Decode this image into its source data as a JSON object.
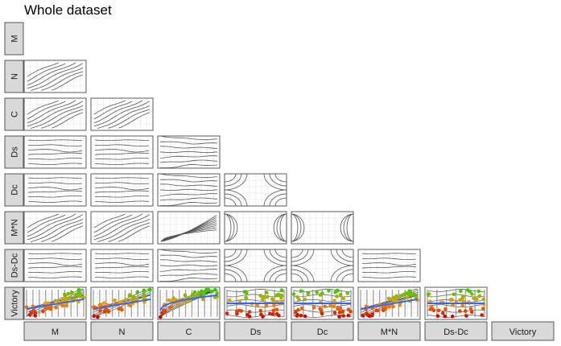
{
  "title": "Whole dataset",
  "colors": {
    "strip_fill": "#d9d9d9",
    "strip_border": "#333333",
    "panel_border": "#333333",
    "grid": "#ebebeb",
    "contour": "#555555",
    "smooth_line": "#3366ff",
    "point_low": "#cc0000",
    "point_mid": "#ff9900",
    "point_high": "#33cc00"
  },
  "chart_data": {
    "type": "scatter",
    "plot_kind": "pairs-matrix",
    "layout": "lower-triangle",
    "variables": [
      "M",
      "N",
      "C",
      "Ds",
      "Dc",
      "M*N",
      "Ds-Dc",
      "Victory"
    ],
    "row_labels": [
      "M",
      "N",
      "C",
      "Ds",
      "Dc",
      "M*N",
      "Ds-Dc",
      "Victory"
    ],
    "column_labels": [
      "M",
      "N",
      "C",
      "Ds",
      "Dc",
      "M*N",
      "Ds-Dc",
      "Victory"
    ],
    "panels": [
      {
        "row": "N",
        "col": "M",
        "kind": "contour",
        "pattern": "diagonal-bands"
      },
      {
        "row": "C",
        "col": "M",
        "kind": "contour",
        "pattern": "diagonal-bands"
      },
      {
        "row": "C",
        "col": "N",
        "kind": "contour",
        "pattern": "diagonal-bands"
      },
      {
        "row": "Ds",
        "col": "M",
        "kind": "contour",
        "pattern": "horizontal-bands"
      },
      {
        "row": "Ds",
        "col": "N",
        "kind": "contour",
        "pattern": "horizontal-bands"
      },
      {
        "row": "Ds",
        "col": "C",
        "kind": "contour",
        "pattern": "left-dense-bands"
      },
      {
        "row": "Dc",
        "col": "M",
        "kind": "contour",
        "pattern": "horizontal-bands"
      },
      {
        "row": "Dc",
        "col": "N",
        "kind": "contour",
        "pattern": "horizontal-bands"
      },
      {
        "row": "Dc",
        "col": "C",
        "kind": "contour",
        "pattern": "left-dense-bands"
      },
      {
        "row": "Dc",
        "col": "Ds",
        "kind": "contour",
        "pattern": "corner-arcs"
      },
      {
        "row": "M*N",
        "col": "M",
        "kind": "contour",
        "pattern": "diagonal-bands"
      },
      {
        "row": "M*N",
        "col": "N",
        "kind": "contour",
        "pattern": "diagonal-bands"
      },
      {
        "row": "M*N",
        "col": "C",
        "kind": "contour",
        "pattern": "curved-fan"
      },
      {
        "row": "M*N",
        "col": "Ds",
        "kind": "contour",
        "pattern": "side-brackets"
      },
      {
        "row": "M*N",
        "col": "Dc",
        "kind": "contour",
        "pattern": "side-brackets"
      },
      {
        "row": "Ds-Dc",
        "col": "M",
        "kind": "contour",
        "pattern": "horizontal-bands"
      },
      {
        "row": "Ds-Dc",
        "col": "N",
        "kind": "contour",
        "pattern": "horizontal-bands"
      },
      {
        "row": "Ds-Dc",
        "col": "C",
        "kind": "contour",
        "pattern": "left-dense-bands"
      },
      {
        "row": "Ds-Dc",
        "col": "Ds",
        "kind": "contour",
        "pattern": "corner-arcs"
      },
      {
        "row": "Ds-Dc",
        "col": "Dc",
        "kind": "contour",
        "pattern": "corner-arcs"
      },
      {
        "row": "Ds-Dc",
        "col": "M*N",
        "kind": "contour",
        "pattern": "horizontal-bands"
      },
      {
        "row": "Victory",
        "col": "M",
        "kind": "scatter-smooth",
        "trend": "increasing"
      },
      {
        "row": "Victory",
        "col": "N",
        "kind": "scatter-smooth",
        "trend": "increasing"
      },
      {
        "row": "Victory",
        "col": "C",
        "kind": "scatter-smooth",
        "trend": "steep-increasing"
      },
      {
        "row": "Victory",
        "col": "Ds",
        "kind": "scatter-smooth",
        "trend": "flat"
      },
      {
        "row": "Victory",
        "col": "Dc",
        "kind": "scatter-smooth",
        "trend": "flat"
      },
      {
        "row": "Victory",
        "col": "M*N",
        "kind": "scatter-smooth",
        "trend": "increasing"
      },
      {
        "row": "Victory",
        "col": "Ds-Dc",
        "kind": "scatter-smooth",
        "trend": "flat"
      }
    ],
    "color_scale": {
      "variable": "Victory",
      "low": "#cc0000",
      "mid": "#ff9900",
      "high": "#33cc00"
    },
    "grid": true,
    "legend": "none"
  }
}
